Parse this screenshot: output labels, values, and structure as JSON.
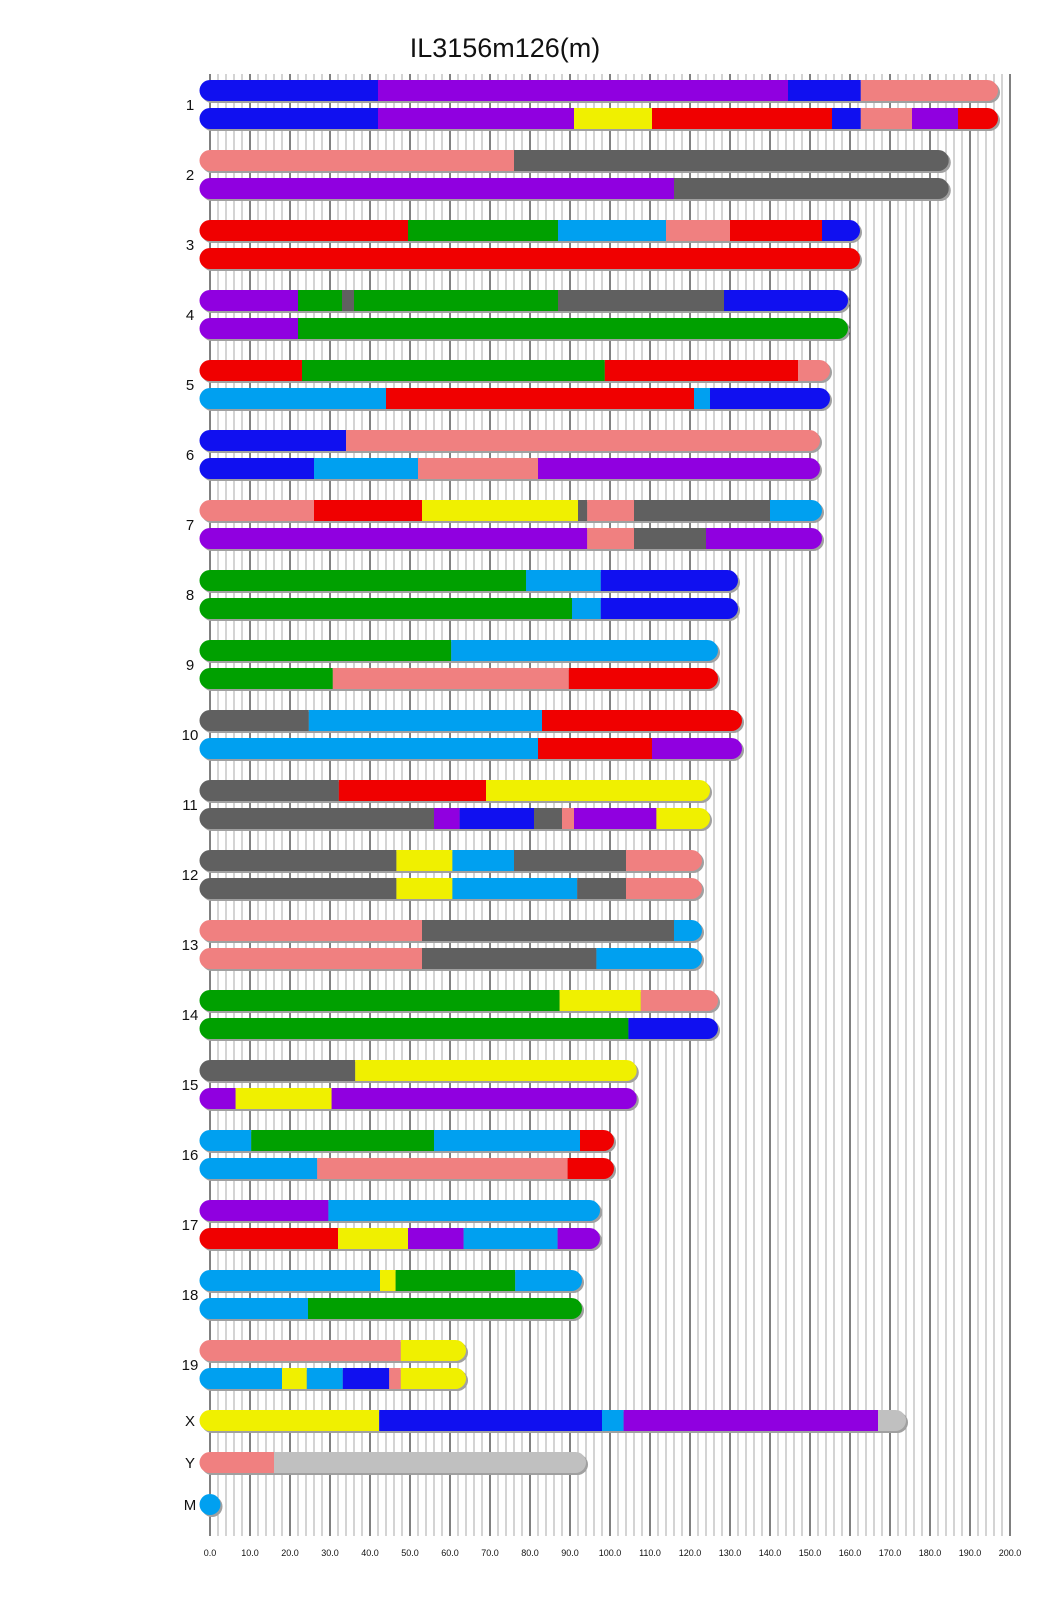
{
  "chart_data": {
    "type": "bar",
    "subtype": "chromosome-painting",
    "title": "IL3156m126(m)",
    "xlabel": "",
    "ylabel": "",
    "xlim": [
      0,
      200
    ],
    "grid": true,
    "x_ticks": [
      "0.0",
      "10.0",
      "20.0",
      "30.0",
      "40.0",
      "50.0",
      "60.0",
      "70.0",
      "80.0",
      "90.0",
      "100.0",
      "110.0",
      "120.0",
      "130.0",
      "140.0",
      "150.0",
      "160.0",
      "170.0",
      "180.0",
      "190.0",
      "200.0"
    ],
    "colors": {
      "blue": "#1010f0",
      "purple": "#9000e0",
      "pink": "#f08080",
      "red": "#f00000",
      "yellow": "#f0f000",
      "green": "#00a000",
      "lightblue": "#00a0f0",
      "grey": "#606060",
      "lightgrey": "#c0c0c0"
    },
    "chromosomes": [
      {
        "label": "1",
        "length": 197,
        "haplotypes": [
          [
            [
              "blue",
              0,
              42
            ],
            [
              "purple",
              42,
              144.5
            ],
            [
              "blue",
              144.5,
              162.7
            ],
            [
              "pink",
              162.7,
              197
            ]
          ],
          [
            [
              "blue",
              0,
              42
            ],
            [
              "purple",
              42,
              91
            ],
            [
              "yellow",
              91,
              110.5
            ],
            [
              "red",
              110.5,
              155.5
            ],
            [
              "blue",
              155.5,
              162.7
            ],
            [
              "pink",
              162.7,
              175.5
            ],
            [
              "purple",
              175.5,
              187
            ],
            [
              "red",
              187,
              197
            ]
          ]
        ]
      },
      {
        "label": "2",
        "length": 184.7,
        "haplotypes": [
          [
            [
              "pink",
              0,
              76
            ],
            [
              "grey",
              76,
              184.7
            ]
          ],
          [
            [
              "purple",
              0,
              116
            ],
            [
              "grey",
              116,
              184.7
            ]
          ]
        ]
      },
      {
        "label": "3",
        "length": 162.5,
        "haplotypes": [
          [
            [
              "red",
              0,
              49.5
            ],
            [
              "green",
              49.5,
              87
            ],
            [
              "lightblue",
              87,
              114
            ],
            [
              "pink",
              114,
              130
            ],
            [
              "red",
              130,
              153
            ],
            [
              "blue",
              153,
              162.5
            ]
          ],
          [
            [
              "red",
              0,
              162.5
            ]
          ]
        ]
      },
      {
        "label": "4",
        "length": 159.5,
        "haplotypes": [
          [
            [
              "purple",
              0,
              22
            ],
            [
              "green",
              22,
              33
            ],
            [
              "grey",
              33,
              36
            ],
            [
              "green",
              36,
              87
            ],
            [
              "grey",
              87,
              128.5
            ],
            [
              "blue",
              128.5,
              159.5
            ]
          ],
          [
            [
              "purple",
              0,
              22
            ],
            [
              "green",
              22,
              159.5
            ]
          ]
        ]
      },
      {
        "label": "5",
        "length": 155,
        "haplotypes": [
          [
            [
              "red",
              0,
              23
            ],
            [
              "green",
              23,
              98.7
            ],
            [
              "red",
              98.7,
              147
            ],
            [
              "pink",
              147,
              155
            ]
          ],
          [
            [
              "lightblue",
              0,
              44
            ],
            [
              "red",
              44,
              121
            ],
            [
              "lightblue",
              121,
              125
            ],
            [
              "blue",
              125,
              155
            ]
          ]
        ]
      },
      {
        "label": "6",
        "length": 152.5,
        "haplotypes": [
          [
            [
              "blue",
              0,
              34
            ],
            [
              "pink",
              34,
              152.5
            ]
          ],
          [
            [
              "blue",
              0,
              26
            ],
            [
              "lightblue",
              26,
              52
            ],
            [
              "pink",
              52,
              82
            ],
            [
              "purple",
              82,
              152.5
            ]
          ]
        ]
      },
      {
        "label": "7",
        "length": 153,
        "haplotypes": [
          [
            [
              "pink",
              0,
              26
            ],
            [
              "red",
              26,
              53
            ],
            [
              "yellow",
              53,
              92
            ],
            [
              "grey",
              92,
              94.3
            ],
            [
              "pink",
              94.3,
              106
            ],
            [
              "grey",
              106,
              140
            ],
            [
              "lightblue",
              140,
              153
            ]
          ],
          [
            [
              "purple",
              0,
              94.3
            ],
            [
              "pink",
              94.3,
              106
            ],
            [
              "grey",
              106,
              124
            ],
            [
              "purple",
              124,
              153
            ]
          ]
        ]
      },
      {
        "label": "8",
        "length": 132,
        "haplotypes": [
          [
            [
              "green",
              0,
              79
            ],
            [
              "lightblue",
              79,
              97.7
            ],
            [
              "blue",
              97.7,
              132
            ]
          ],
          [
            [
              "green",
              0,
              90.5
            ],
            [
              "lightblue",
              90.5,
              97.7
            ],
            [
              "blue",
              97.7,
              132
            ]
          ]
        ]
      },
      {
        "label": "9",
        "length": 127,
        "haplotypes": [
          [
            [
              "green",
              0,
              60.3
            ],
            [
              "lightblue",
              60.3,
              127
            ]
          ],
          [
            [
              "green",
              0,
              30.7
            ],
            [
              "pink",
              30.7,
              89.7
            ],
            [
              "red",
              89.7,
              127
            ]
          ]
        ]
      },
      {
        "label": "10",
        "length": 133,
        "haplotypes": [
          [
            [
              "grey",
              0,
              24.7
            ],
            [
              "lightblue",
              24.7,
              83
            ],
            [
              "red",
              83,
              133
            ]
          ],
          [
            [
              "lightblue",
              0,
              82
            ],
            [
              "red",
              82,
              110.5
            ],
            [
              "purple",
              110.5,
              133
            ]
          ]
        ]
      },
      {
        "label": "11",
        "length": 125,
        "haplotypes": [
          [
            [
              "grey",
              0,
              32.2
            ],
            [
              "red",
              32.2,
              69
            ],
            [
              "yellow",
              69,
              125
            ]
          ],
          [
            [
              "grey",
              0,
              56
            ],
            [
              "purple",
              56,
              62.4
            ],
            [
              "blue",
              62.4,
              81
            ],
            [
              "grey",
              81,
              88
            ],
            [
              "pink",
              88,
              91
            ],
            [
              "purple",
              91,
              111.6
            ],
            [
              "yellow",
              111.6,
              125
            ]
          ]
        ]
      },
      {
        "label": "12",
        "length": 123,
        "haplotypes": [
          [
            [
              "grey",
              0,
              46.6
            ],
            [
              "yellow",
              46.6,
              60.6
            ],
            [
              "lightblue",
              60.6,
              76
            ],
            [
              "grey",
              76,
              104
            ],
            [
              "pink",
              104,
              123
            ]
          ],
          [
            [
              "grey",
              0,
              46.6
            ],
            [
              "yellow",
              46.6,
              60.6
            ],
            [
              "lightblue",
              60.6,
              91.8
            ],
            [
              "grey",
              91.8,
              104
            ],
            [
              "pink",
              104,
              123
            ]
          ]
        ]
      },
      {
        "label": "13",
        "length": 123,
        "haplotypes": [
          [
            [
              "pink",
              0,
              53
            ],
            [
              "grey",
              53,
              116
            ],
            [
              "lightblue",
              116,
              123
            ]
          ],
          [
            [
              "pink",
              0,
              53
            ],
            [
              "grey",
              53,
              96.6
            ],
            [
              "lightblue",
              96.6,
              123
            ]
          ]
        ]
      },
      {
        "label": "14",
        "length": 127,
        "haplotypes": [
          [
            [
              "green",
              0,
              87.4
            ],
            [
              "yellow",
              87.4,
              107.7
            ],
            [
              "pink",
              107.7,
              127
            ]
          ],
          [
            [
              "green",
              0,
              104.6
            ],
            [
              "blue",
              104.6,
              127
            ]
          ]
        ]
      },
      {
        "label": "15",
        "length": 106.7,
        "haplotypes": [
          [
            [
              "grey",
              0,
              36.3
            ],
            [
              "yellow",
              36.3,
              106.7
            ]
          ],
          [
            [
              "purple",
              0,
              6.4
            ],
            [
              "yellow",
              6.4,
              30.4
            ],
            [
              "purple",
              30.4,
              106.7
            ]
          ]
        ]
      },
      {
        "label": "16",
        "length": 101,
        "haplotypes": [
          [
            [
              "lightblue",
              0,
              10.3
            ],
            [
              "green",
              10.3,
              56
            ],
            [
              "lightblue",
              56,
              92.5
            ],
            [
              "red",
              92.5,
              101
            ]
          ],
          [
            [
              "lightblue",
              0,
              26.8
            ],
            [
              "pink",
              26.8,
              89.4
            ],
            [
              "red",
              89.4,
              101
            ]
          ]
        ]
      },
      {
        "label": "17",
        "length": 97.5,
        "haplotypes": [
          [
            [
              "purple",
              0,
              29.6
            ],
            [
              "lightblue",
              29.6,
              97.5
            ]
          ],
          [
            [
              "red",
              0,
              32
            ],
            [
              "yellow",
              32,
              49.5
            ],
            [
              "purple",
              49.5,
              63.4
            ],
            [
              "lightblue",
              63.4,
              86.9
            ],
            [
              "purple",
              86.9,
              97.5
            ]
          ]
        ]
      },
      {
        "label": "18",
        "length": 93,
        "haplotypes": [
          [
            [
              "lightblue",
              0,
              42.5
            ],
            [
              "yellow",
              42.5,
              46.4
            ],
            [
              "green",
              46.4,
              76.3
            ],
            [
              "lightblue",
              76.3,
              93
            ]
          ],
          [
            [
              "lightblue",
              0,
              24.5
            ],
            [
              "green",
              24.5,
              93
            ]
          ]
        ]
      },
      {
        "label": "19",
        "length": 64,
        "haplotypes": [
          [
            [
              "pink",
              0,
              47.7
            ],
            [
              "yellow",
              47.7,
              64
            ]
          ],
          [
            [
              "lightblue",
              0,
              18
            ],
            [
              "yellow",
              18,
              24.2
            ],
            [
              "lightblue",
              24.2,
              33.2
            ],
            [
              "blue",
              33.2,
              44.8
            ],
            [
              "pink",
              44.8,
              47.7
            ],
            [
              "yellow",
              47.7,
              64
            ]
          ]
        ]
      },
      {
        "label": "X",
        "length": 174,
        "haplotypes": [
          [
            [
              "yellow",
              0,
              42.3
            ],
            [
              "blue",
              42.3,
              98
            ],
            [
              "lightblue",
              98,
              103.4
            ],
            [
              "purple",
              103.4,
              167
            ],
            [
              "lightgrey",
              167,
              174
            ]
          ]
        ]
      },
      {
        "label": "Y",
        "length": 94,
        "haplotypes": [
          [
            [
              "pink",
              0,
              16
            ],
            [
              "lightgrey",
              16,
              94
            ]
          ]
        ]
      },
      {
        "label": "M",
        "length": 0.02,
        "haplotypes": [
          [
            [
              "lightblue",
              0,
              0.02
            ]
          ]
        ]
      }
    ]
  }
}
